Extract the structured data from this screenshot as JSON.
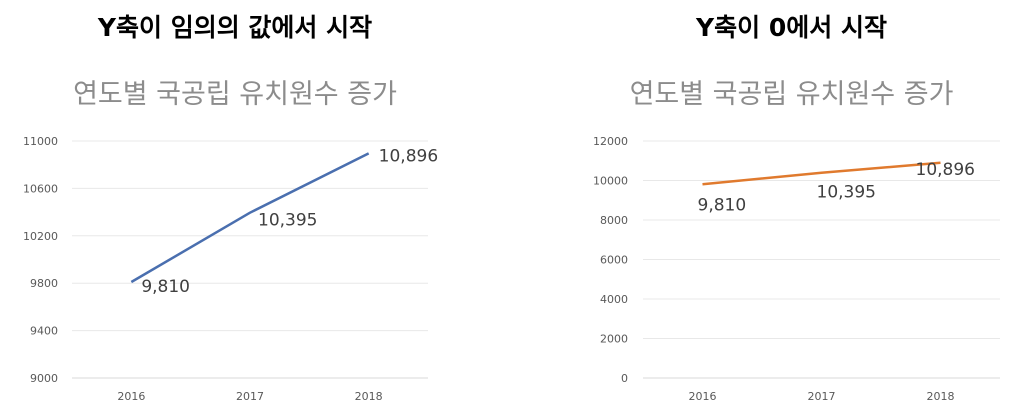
{
  "panels": [
    {
      "heading": "Y축이 임의의 값에서 시작",
      "chart_data": {
        "type": "line",
        "title": "연도별 국공립 유치원수 증가",
        "categories": [
          "2016",
          "2017",
          "2018"
        ],
        "series": [
          {
            "values": [
              9810,
              10395,
              10896
            ],
            "color": "#4a6faf"
          }
        ],
        "data_labels": [
          "9,810",
          "10,395",
          "10,896"
        ],
        "ylim": [
          9000,
          11000
        ],
        "yticks": [
          9000,
          9400,
          9800,
          10200,
          10600,
          11000
        ],
        "grid": true,
        "xlabel": "",
        "ylabel": ""
      }
    },
    {
      "heading": "Y축이 0에서 시작",
      "chart_data": {
        "type": "line",
        "title": "연도별 국공립 유치원수 증가",
        "categories": [
          "2016",
          "2017",
          "2018"
        ],
        "series": [
          {
            "values": [
              9810,
              10395,
              10896
            ],
            "color": "#e07a2e"
          }
        ],
        "data_labels": [
          "9,810",
          "10,395",
          "10,896"
        ],
        "ylim": [
          0,
          12000
        ],
        "yticks": [
          0,
          2000,
          4000,
          6000,
          8000,
          10000,
          12000
        ],
        "grid": true,
        "xlabel": "",
        "ylabel": ""
      }
    }
  ]
}
